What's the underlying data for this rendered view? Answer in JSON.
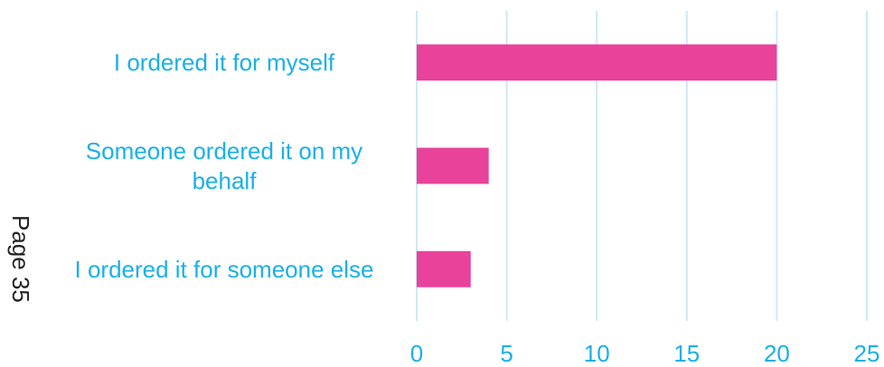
{
  "page": {
    "label": "Page 35"
  },
  "chart_data": {
    "type": "bar",
    "orientation": "horizontal",
    "categories": [
      [
        "I ordered it for myself"
      ],
      [
        "Someone ordered it on my",
        "behalf"
      ],
      [
        "I ordered it for someone else"
      ]
    ],
    "values": [
      20,
      4,
      3
    ],
    "xlim": [
      0,
      25
    ],
    "xticks": [
      0,
      5,
      10,
      15,
      20,
      25
    ],
    "grid": true,
    "legend": "none",
    "colors": {
      "bar": "#e8429a",
      "label": "#1ab0e8",
      "grid": "#cfe8f6"
    }
  }
}
